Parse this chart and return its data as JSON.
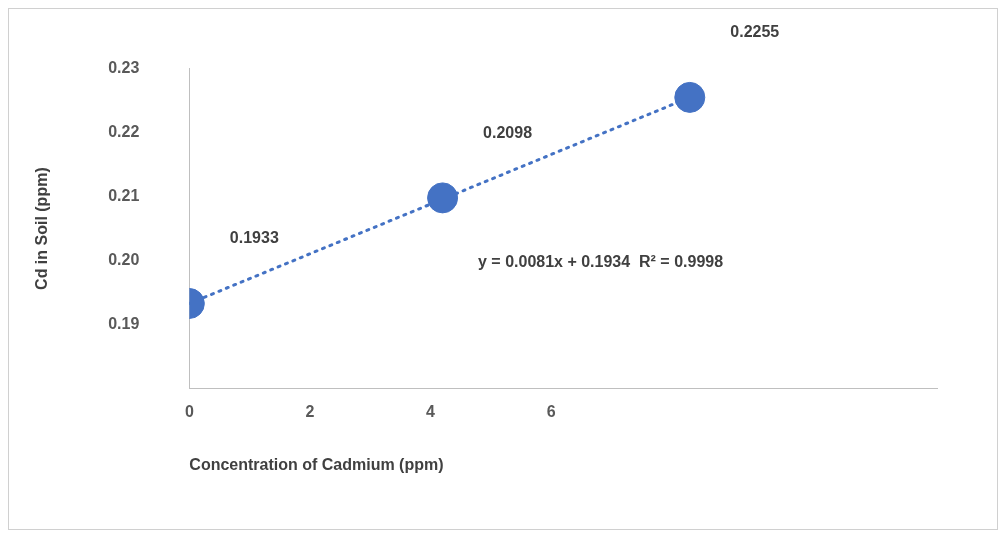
{
  "chart_data": {
    "type": "scatter",
    "xlabel": "Concentration of Cadmium (ppm)",
    "ylabel": "Cd in Soil (ppm)",
    "xlim": [
      0,
      12.4
    ],
    "xticks": [
      0,
      2,
      4,
      6
    ],
    "ylim": [
      0.18,
      0.23
    ],
    "yticks": [
      0.19,
      {
        "value": 0.2,
        "label": "0.20"
      },
      0.21,
      0.22,
      0.23
    ],
    "grid": false,
    "legend": false,
    "marker": "circle",
    "series": [
      {
        "type": "scatter",
        "color": "#4472c4",
        "x": [
          0,
          4.2,
          8.3
        ],
        "values": [
          0.1933,
          0.2098,
          0.2255
        ],
        "value_labels": [
          "0.1933",
          "0.2098",
          "0.2255"
        ]
      },
      {
        "type": "line",
        "color": "#4472c4",
        "line_style": "dotted",
        "marker": "none",
        "x": [
          0,
          8.3
        ],
        "values": [
          0.1933,
          0.2255
        ]
      }
    ],
    "annotations": [
      "y = 0.0081x + 0.1934  R² = 0.9998"
    ]
  }
}
